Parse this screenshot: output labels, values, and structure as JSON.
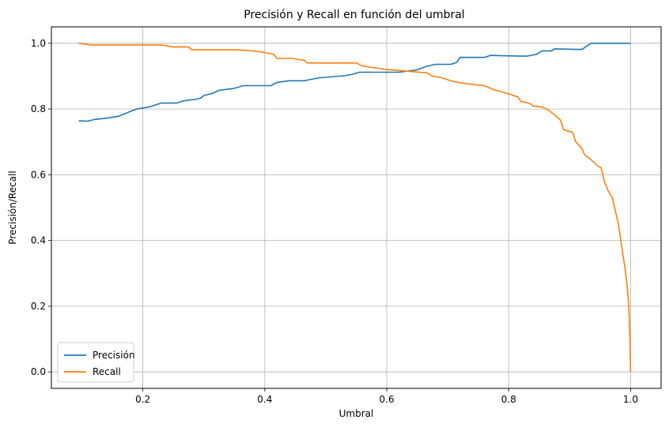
{
  "chart_data": {
    "type": "line",
    "title": "Precisión y Recall en función del umbral",
    "xlabel": "Umbral",
    "ylabel": "Precisión/Recall",
    "xlim": [
      0.05,
      1.05
    ],
    "ylim": [
      -0.05,
      1.05
    ],
    "xticks": [
      0.2,
      0.4,
      0.6,
      0.8,
      1.0
    ],
    "xtick_labels": [
      "0.2",
      "0.4",
      "0.6",
      "0.8",
      "1.0"
    ],
    "yticks": [
      0.0,
      0.2,
      0.4,
      0.6,
      0.8,
      1.0
    ],
    "ytick_labels": [
      "0.0",
      "0.2",
      "0.4",
      "0.6",
      "0.8",
      "1.0"
    ],
    "grid": true,
    "legend_position": "lower-left",
    "series": [
      {
        "name": "Precisión",
        "color": "#1f77b4",
        "points": [
          [
            0.095,
            0.764
          ],
          [
            0.11,
            0.763
          ],
          [
            0.12,
            0.768
          ],
          [
            0.14,
            0.772
          ],
          [
            0.16,
            0.778
          ],
          [
            0.17,
            0.785
          ],
          [
            0.18,
            0.793
          ],
          [
            0.19,
            0.8
          ],
          [
            0.21,
            0.806
          ],
          [
            0.22,
            0.812
          ],
          [
            0.23,
            0.818
          ],
          [
            0.255,
            0.818
          ],
          [
            0.265,
            0.824
          ],
          [
            0.275,
            0.827
          ],
          [
            0.285,
            0.829
          ],
          [
            0.295,
            0.833
          ],
          [
            0.3,
            0.841
          ],
          [
            0.315,
            0.848
          ],
          [
            0.325,
            0.857
          ],
          [
            0.35,
            0.863
          ],
          [
            0.365,
            0.871
          ],
          [
            0.41,
            0.871
          ],
          [
            0.42,
            0.881
          ],
          [
            0.44,
            0.886
          ],
          [
            0.465,
            0.886
          ],
          [
            0.475,
            0.89
          ],
          [
            0.49,
            0.895
          ],
          [
            0.53,
            0.901
          ],
          [
            0.545,
            0.906
          ],
          [
            0.555,
            0.912
          ],
          [
            0.62,
            0.912
          ],
          [
            0.65,
            0.919
          ],
          [
            0.665,
            0.93
          ],
          [
            0.68,
            0.936
          ],
          [
            0.705,
            0.936
          ],
          [
            0.715,
            0.942
          ],
          [
            0.72,
            0.957
          ],
          [
            0.76,
            0.957
          ],
          [
            0.77,
            0.963
          ],
          [
            0.82,
            0.961
          ],
          [
            0.83,
            0.961
          ],
          [
            0.845,
            0.966
          ],
          [
            0.855,
            0.977
          ],
          [
            0.87,
            0.977
          ],
          [
            0.875,
            0.983
          ],
          [
            0.92,
            0.981
          ],
          [
            0.935,
            1.0
          ],
          [
            1.0,
            1.0
          ]
        ]
      },
      {
        "name": "Recall",
        "color": "#ff7f0e",
        "points": [
          [
            0.095,
            1.0
          ],
          [
            0.115,
            0.995
          ],
          [
            0.23,
            0.995
          ],
          [
            0.25,
            0.989
          ],
          [
            0.275,
            0.989
          ],
          [
            0.28,
            0.98
          ],
          [
            0.355,
            0.98
          ],
          [
            0.38,
            0.977
          ],
          [
            0.4,
            0.972
          ],
          [
            0.415,
            0.966
          ],
          [
            0.42,
            0.954
          ],
          [
            0.445,
            0.954
          ],
          [
            0.465,
            0.948
          ],
          [
            0.47,
            0.94
          ],
          [
            0.55,
            0.94
          ],
          [
            0.56,
            0.931
          ],
          [
            0.58,
            0.925
          ],
          [
            0.6,
            0.92
          ],
          [
            0.64,
            0.914
          ],
          [
            0.66,
            0.911
          ],
          [
            0.665,
            0.911
          ],
          [
            0.675,
            0.9
          ],
          [
            0.69,
            0.895
          ],
          [
            0.705,
            0.886
          ],
          [
            0.72,
            0.88
          ],
          [
            0.745,
            0.874
          ],
          [
            0.76,
            0.871
          ],
          [
            0.775,
            0.859
          ],
          [
            0.8,
            0.846
          ],
          [
            0.815,
            0.837
          ],
          [
            0.82,
            0.823
          ],
          [
            0.835,
            0.817
          ],
          [
            0.84,
            0.809
          ],
          [
            0.855,
            0.806
          ],
          [
            0.865,
            0.797
          ],
          [
            0.875,
            0.783
          ],
          [
            0.885,
            0.766
          ],
          [
            0.89,
            0.737
          ],
          [
            0.905,
            0.729
          ],
          [
            0.91,
            0.7
          ],
          [
            0.92,
            0.68
          ],
          [
            0.925,
            0.66
          ],
          [
            0.935,
            0.646
          ],
          [
            0.945,
            0.629
          ],
          [
            0.952,
            0.62
          ],
          [
            0.957,
            0.58
          ],
          [
            0.962,
            0.555
          ],
          [
            0.97,
            0.53
          ],
          [
            0.975,
            0.49
          ],
          [
            0.98,
            0.45
          ],
          [
            0.984,
            0.4
          ],
          [
            0.988,
            0.35
          ],
          [
            0.992,
            0.3
          ],
          [
            0.995,
            0.25
          ],
          [
            0.997,
            0.2
          ],
          [
            0.999,
            0.1
          ],
          [
            1.0,
            0.0
          ]
        ]
      }
    ]
  }
}
